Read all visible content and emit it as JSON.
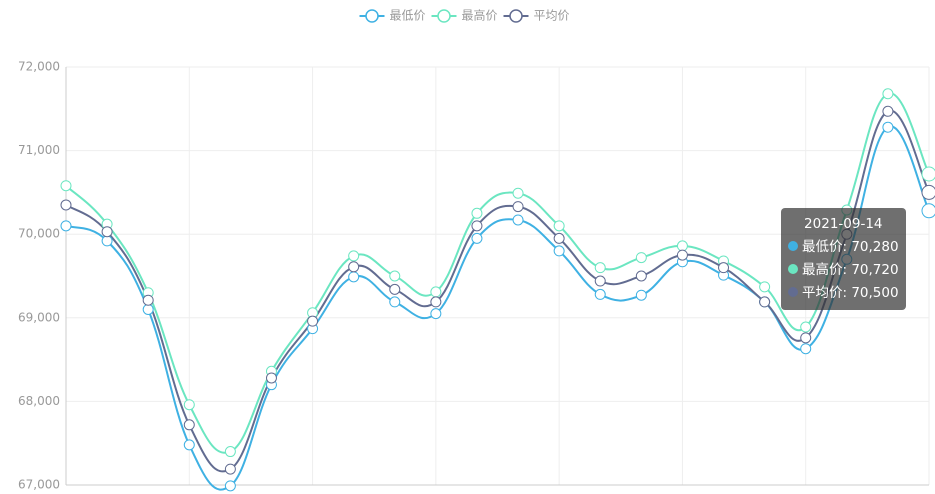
{
  "chart_data": {
    "type": "line",
    "categories": [
      null,
      null,
      null,
      null,
      null,
      null,
      null,
      null,
      null,
      null,
      null,
      null,
      null,
      null,
      null,
      null,
      null,
      null,
      null,
      null,
      null,
      "2021-09-14"
    ],
    "series": [
      {
        "name": "最低价",
        "color": "#3fb1e3",
        "values": [
          70100,
          69920,
          69100,
          67480,
          66990,
          68200,
          68870,
          69490,
          69190,
          69050,
          69950,
          70170,
          69800,
          69280,
          69270,
          69670,
          69510,
          69190,
          68630,
          69700,
          71280,
          70280
        ]
      },
      {
        "name": "最高价",
        "color": "#6be6c1",
        "values": [
          70580,
          70120,
          69300,
          67960,
          67400,
          68360,
          69060,
          69740,
          69500,
          69310,
          70250,
          70490,
          70100,
          69600,
          69720,
          69860,
          69680,
          69370,
          68890,
          70290,
          71680,
          70720
        ]
      },
      {
        "name": "平均价",
        "color": "#626c91",
        "values": [
          70350,
          70030,
          69210,
          67720,
          67190,
          68280,
          68960,
          69610,
          69340,
          69190,
          70100,
          70330,
          69950,
          69440,
          69500,
          69750,
          69600,
          69190,
          68760,
          70000,
          71470,
          70500
        ]
      }
    ],
    "ylim": [
      67000,
      72000
    ],
    "yticks": [
      {
        "value": 67000,
        "label": "67,000"
      },
      {
        "value": 68000,
        "label": "68,000"
      },
      {
        "value": 69000,
        "label": "69,000"
      },
      {
        "value": 70000,
        "label": "70,000"
      },
      {
        "value": 71000,
        "label": "71,000"
      },
      {
        "value": 72000,
        "label": "72,000"
      }
    ],
    "grid": true,
    "legend": "top",
    "tooltip": {
      "rows": [
        "最低价: 70,280",
        "最高价: 70,720",
        "平均价: 70,500"
      ]
    }
  }
}
